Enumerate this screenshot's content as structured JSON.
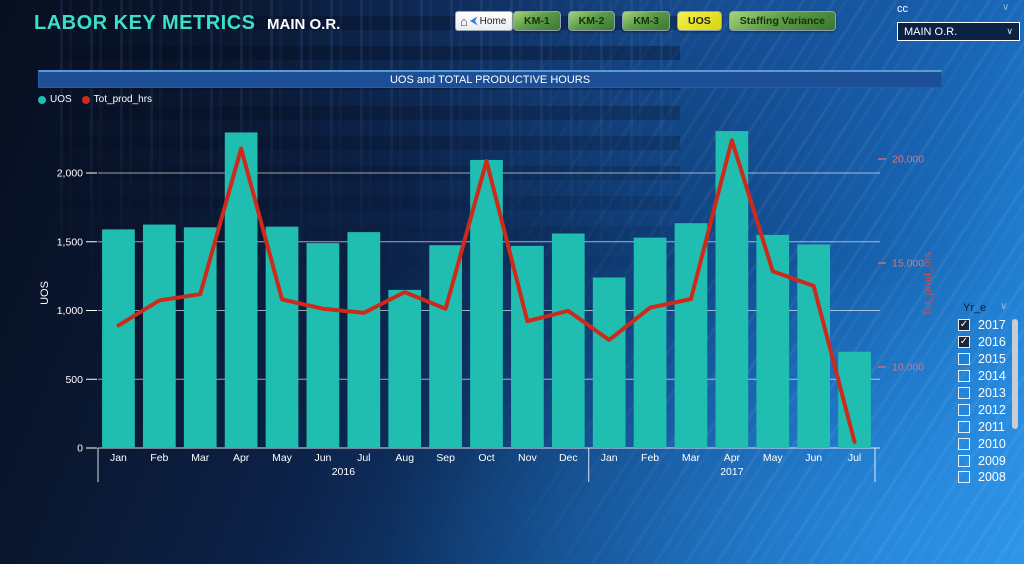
{
  "header": {
    "title": "LABOR KEY METRICS",
    "subtitle": "MAIN O.R."
  },
  "nav": {
    "home_label": "Home",
    "buttons": [
      {
        "label": "KM-1",
        "variant": "green"
      },
      {
        "label": "KM-2",
        "variant": "green"
      },
      {
        "label": "KM-3",
        "variant": "green"
      },
      {
        "label": "UOS",
        "variant": "yellow"
      },
      {
        "label": "Staffing Variance",
        "variant": "green"
      }
    ]
  },
  "cc_slicer": {
    "label": "cc",
    "selected": "MAIN O.R."
  },
  "year_slicer": {
    "label": "Yr_e",
    "items": [
      {
        "label": "2017",
        "checked": true
      },
      {
        "label": "2016",
        "checked": true
      },
      {
        "label": "2015",
        "checked": false
      },
      {
        "label": "2014",
        "checked": false
      },
      {
        "label": "2013",
        "checked": false
      },
      {
        "label": "2012",
        "checked": false
      },
      {
        "label": "2011",
        "checked": false
      },
      {
        "label": "2010",
        "checked": false
      },
      {
        "label": "2009",
        "checked": false
      },
      {
        "label": "2008",
        "checked": false
      }
    ]
  },
  "chart_data": {
    "type": "bar+line combo",
    "title": "UOS  and TOTAL PRODUCTIVE HOURS",
    "x_groups": [
      {
        "year": "2016",
        "months": [
          "Jan",
          "Feb",
          "Mar",
          "Apr",
          "May",
          "Jun",
          "Jul",
          "Aug",
          "Sep",
          "Oct",
          "Nov",
          "Dec"
        ]
      },
      {
        "year": "2017",
        "months": [
          "Jan",
          "Feb",
          "Mar",
          "Apr",
          "May",
          "Jun",
          "Jul"
        ]
      }
    ],
    "series": [
      {
        "name": "UOS",
        "type": "bar",
        "axis": "left",
        "color": "#1fbeb1",
        "values": [
          1590,
          1625,
          1605,
          2295,
          1610,
          1490,
          1570,
          1150,
          1475,
          2095,
          1470,
          1560,
          1240,
          1530,
          1635,
          2305,
          1550,
          1480,
          700
        ]
      },
      {
        "name": "Tot_prod_hrs",
        "type": "line",
        "axis": "right",
        "color": "#cd2a1b",
        "values": [
          12000,
          13200,
          13500,
          20500,
          13250,
          12800,
          12600,
          13600,
          12800,
          19900,
          12200,
          12700,
          11300,
          12850,
          13270,
          20900,
          14600,
          13900,
          6400
        ]
      }
    ],
    "left_axis": {
      "label": "UOS",
      "min": 0,
      "max": 2000,
      "tick_step": 500
    },
    "right_axis": {
      "label": "Tot_prod_hrs",
      "ticks": [
        10000,
        15000,
        20000
      ]
    },
    "grid": true,
    "legend_position": "top-left"
  }
}
